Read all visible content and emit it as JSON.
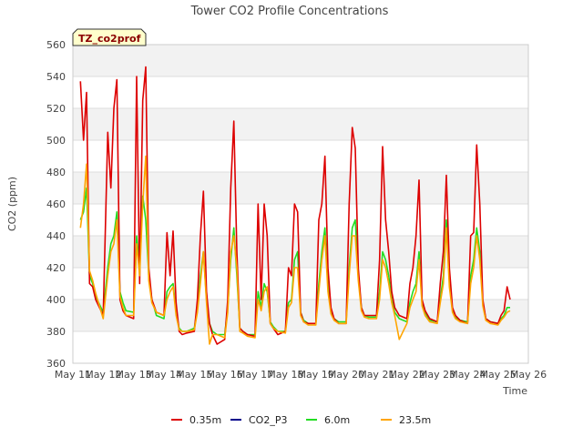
{
  "chart_data": {
    "type": "line",
    "title": "Tower CO2 Profile Concentrations",
    "xlabel": "Time",
    "ylabel": "CO2 (ppm)",
    "tag": "TZ_co2prof",
    "ylim": [
      360,
      560
    ],
    "xlim": [
      11,
      26
    ],
    "yticks": [
      360,
      380,
      400,
      420,
      440,
      460,
      480,
      500,
      520,
      540,
      560
    ],
    "xticks": [
      {
        "v": 11,
        "label": "May 11"
      },
      {
        "v": 12,
        "label": "May 12"
      },
      {
        "v": 13,
        "label": "May 13"
      },
      {
        "v": 14,
        "label": "May 14"
      },
      {
        "v": 15,
        "label": "May 15"
      },
      {
        "v": 16,
        "label": "May 16"
      },
      {
        "v": 17,
        "label": "May 17"
      },
      {
        "v": 18,
        "label": "May 18"
      },
      {
        "v": 19,
        "label": "May 19"
      },
      {
        "v": 20,
        "label": "May 20"
      },
      {
        "v": 21,
        "label": "May 21"
      },
      {
        "v": 22,
        "label": "May 22"
      },
      {
        "v": 23,
        "label": "May 23"
      },
      {
        "v": 24,
        "label": "May 24"
      },
      {
        "v": 25,
        "label": "May 25"
      },
      {
        "v": 26,
        "label": "May 26"
      }
    ],
    "series": [
      {
        "name": "0.35m",
        "color": "#dd0000",
        "x": [
          11.25,
          11.35,
          11.45,
          11.55,
          11.65,
          11.75,
          12.0,
          12.15,
          12.25,
          12.35,
          12.45,
          12.55,
          12.65,
          12.75,
          13.0,
          13.1,
          13.2,
          13.3,
          13.4,
          13.5,
          13.6,
          13.75,
          14.0,
          14.1,
          14.2,
          14.3,
          14.4,
          14.5,
          14.6,
          14.75,
          15.0,
          15.1,
          15.2,
          15.3,
          15.4,
          15.5,
          15.6,
          15.75,
          16.0,
          16.1,
          16.2,
          16.3,
          16.4,
          16.5,
          16.6,
          16.75,
          17.0,
          17.1,
          17.2,
          17.3,
          17.4,
          17.5,
          17.6,
          17.75,
          18.0,
          18.1,
          18.2,
          18.3,
          18.4,
          18.5,
          18.6,
          18.75,
          19.0,
          19.1,
          19.2,
          19.3,
          19.4,
          19.5,
          19.6,
          19.75,
          20.0,
          20.1,
          20.2,
          20.3,
          20.4,
          20.5,
          20.6,
          20.75,
          21.0,
          21.1,
          21.2,
          21.3,
          21.4,
          21.5,
          21.6,
          21.75,
          22.0,
          22.1,
          22.2,
          22.3,
          22.4,
          22.5,
          22.6,
          22.75,
          23.0,
          23.1,
          23.2,
          23.3,
          23.4,
          23.5,
          23.6,
          23.75,
          24.0,
          24.1,
          24.2,
          24.3,
          24.4,
          24.5,
          24.6,
          24.75,
          25.0,
          25.1,
          25.2,
          25.3,
          25.4
        ],
        "y": [
          537,
          500,
          530,
          410,
          408,
          400,
          390,
          505,
          470,
          520,
          538,
          400,
          393,
          390,
          388,
          540,
          410,
          525,
          546,
          420,
          400,
          392,
          390,
          442,
          415,
          443,
          398,
          380,
          378,
          379,
          380,
          400,
          440,
          468,
          405,
          385,
          378,
          372,
          375,
          400,
          470,
          512,
          430,
          382,
          380,
          378,
          377,
          460,
          400,
          460,
          440,
          385,
          382,
          378,
          380,
          420,
          415,
          460,
          455,
          392,
          386,
          385,
          385,
          450,
          460,
          490,
          420,
          395,
          388,
          385,
          385,
          460,
          508,
          495,
          420,
          395,
          390,
          390,
          390,
          425,
          496,
          450,
          430,
          405,
          395,
          390,
          388,
          410,
          420,
          440,
          475,
          400,
          393,
          388,
          386,
          410,
          430,
          478,
          420,
          395,
          390,
          387,
          385,
          440,
          442,
          497,
          460,
          400,
          388,
          386,
          385,
          390,
          393,
          408,
          400
        ]
      },
      {
        "name": "CO2_P3",
        "color": "#00008b",
        "x": [],
        "y": []
      },
      {
        "name": "6.0m",
        "color": "#22dd22",
        "x": [
          11.25,
          11.35,
          11.45,
          11.55,
          11.65,
          11.75,
          12.0,
          12.15,
          12.25,
          12.35,
          12.45,
          12.55,
          12.65,
          12.75,
          13.0,
          13.1,
          13.2,
          13.3,
          13.4,
          13.5,
          13.6,
          13.75,
          14.0,
          14.1,
          14.2,
          14.3,
          14.4,
          14.5,
          14.6,
          14.75,
          15.0,
          15.1,
          15.2,
          15.3,
          15.4,
          15.5,
          15.6,
          15.75,
          16.0,
          16.1,
          16.2,
          16.3,
          16.4,
          16.5,
          16.6,
          16.75,
          17.0,
          17.1,
          17.2,
          17.3,
          17.4,
          17.5,
          17.6,
          17.75,
          18.0,
          18.1,
          18.2,
          18.3,
          18.4,
          18.5,
          18.6,
          18.75,
          19.0,
          19.1,
          19.2,
          19.3,
          19.4,
          19.5,
          19.6,
          19.75,
          20.0,
          20.1,
          20.2,
          20.3,
          20.4,
          20.5,
          20.6,
          20.75,
          21.0,
          21.1,
          21.2,
          21.3,
          21.4,
          21.5,
          21.6,
          21.75,
          22.0,
          22.1,
          22.2,
          22.3,
          22.4,
          22.5,
          22.6,
          22.75,
          23.0,
          23.1,
          23.2,
          23.3,
          23.4,
          23.5,
          23.6,
          23.75,
          24.0,
          24.1,
          24.2,
          24.3,
          24.4,
          24.5,
          24.6,
          24.75,
          25.0,
          25.1,
          25.2,
          25.3,
          25.4
        ],
        "y": [
          450,
          455,
          470,
          415,
          410,
          402,
          392,
          420,
          435,
          440,
          455,
          405,
          398,
          393,
          392,
          440,
          420,
          465,
          450,
          415,
          400,
          390,
          388,
          405,
          408,
          410,
          392,
          382,
          380,
          380,
          382,
          395,
          415,
          430,
          400,
          385,
          380,
          378,
          378,
          395,
          425,
          445,
          415,
          382,
          380,
          378,
          378,
          405,
          395,
          410,
          405,
          386,
          383,
          380,
          380,
          398,
          400,
          425,
          430,
          392,
          387,
          385,
          385,
          410,
          430,
          445,
          410,
          392,
          388,
          386,
          386,
          420,
          445,
          450,
          415,
          395,
          390,
          389,
          389,
          405,
          430,
          425,
          415,
          400,
          392,
          388,
          386,
          398,
          405,
          410,
          430,
          398,
          392,
          387,
          386,
          400,
          415,
          450,
          412,
          393,
          389,
          387,
          386,
          415,
          425,
          445,
          430,
          398,
          388,
          386,
          385,
          388,
          390,
          395,
          395
        ]
      },
      {
        "name": "23.5m",
        "color": "#ffa500",
        "x": [
          11.25,
          11.35,
          11.45,
          11.55,
          11.65,
          11.75,
          12.0,
          12.15,
          12.25,
          12.35,
          12.45,
          12.55,
          12.65,
          12.75,
          13.0,
          13.1,
          13.2,
          13.3,
          13.4,
          13.5,
          13.6,
          13.75,
          14.0,
          14.1,
          14.2,
          14.3,
          14.4,
          14.5,
          14.6,
          14.75,
          15.0,
          15.1,
          15.2,
          15.3,
          15.4,
          15.5,
          15.6,
          15.75,
          16.0,
          16.1,
          16.2,
          16.3,
          16.4,
          16.5,
          16.6,
          16.75,
          17.0,
          17.1,
          17.2,
          17.3,
          17.4,
          17.5,
          17.6,
          17.75,
          18.0,
          18.1,
          18.2,
          18.3,
          18.4,
          18.5,
          18.6,
          18.75,
          19.0,
          19.1,
          19.2,
          19.3,
          19.4,
          19.5,
          19.6,
          19.75,
          20.0,
          20.1,
          20.2,
          20.3,
          20.4,
          20.5,
          20.6,
          20.75,
          21.0,
          21.1,
          21.2,
          21.3,
          21.4,
          21.5,
          21.6,
          21.75,
          22.0,
          22.1,
          22.2,
          22.3,
          22.4,
          22.5,
          22.6,
          22.75,
          23.0,
          23.1,
          23.2,
          23.3,
          23.4,
          23.5,
          23.6,
          23.75,
          24.0,
          24.1,
          24.2,
          24.3,
          24.4,
          24.5,
          24.6,
          24.75,
          25.0,
          25.1,
          25.2,
          25.3,
          25.4
        ],
        "y": [
          445,
          460,
          485,
          418,
          412,
          404,
          388,
          415,
          430,
          435,
          450,
          402,
          395,
          390,
          390,
          435,
          415,
          460,
          490,
          412,
          398,
          392,
          390,
          400,
          405,
          408,
          390,
          381,
          380,
          380,
          381,
          392,
          410,
          430,
          398,
          372,
          378,
          378,
          376,
          392,
          430,
          440,
          420,
          380,
          379,
          377,
          376,
          400,
          393,
          405,
          408,
          385,
          382,
          380,
          379,
          395,
          398,
          420,
          420,
          390,
          386,
          384,
          384,
          405,
          425,
          440,
          405,
          391,
          387,
          385,
          385,
          415,
          440,
          440,
          412,
          393,
          389,
          388,
          388,
          400,
          425,
          420,
          410,
          398,
          390,
          375,
          385,
          395,
          400,
          405,
          425,
          396,
          390,
          386,
          385,
          398,
          410,
          445,
          408,
          392,
          388,
          386,
          385,
          410,
          420,
          440,
          425,
          396,
          387,
          385,
          384,
          387,
          389,
          392,
          393
        ]
      }
    ]
  }
}
